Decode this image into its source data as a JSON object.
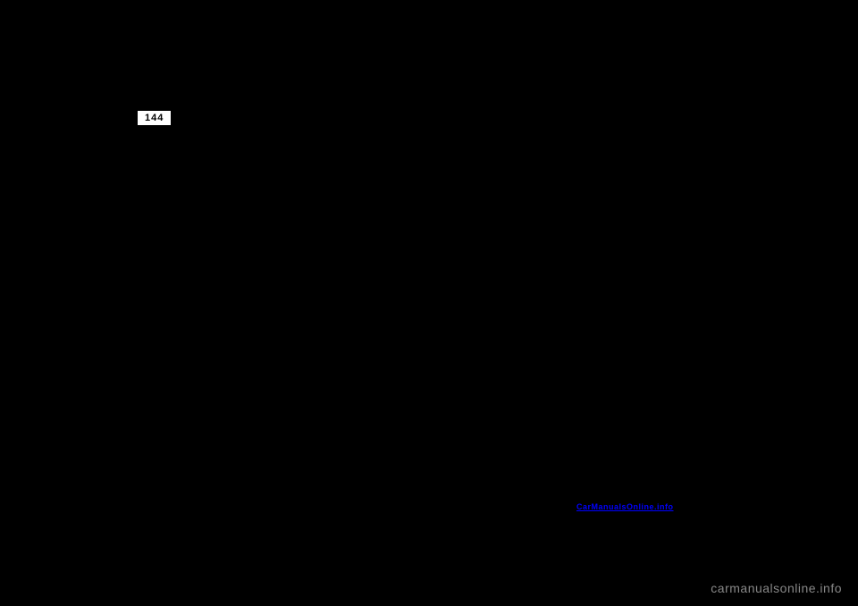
{
  "page": {
    "number": "144",
    "background_color": "#000000"
  },
  "link": {
    "text": "CarManualsOnline.info",
    "color": "#0000ff"
  },
  "watermark": {
    "text": "carmanualsonline.info",
    "color": "#888888"
  }
}
